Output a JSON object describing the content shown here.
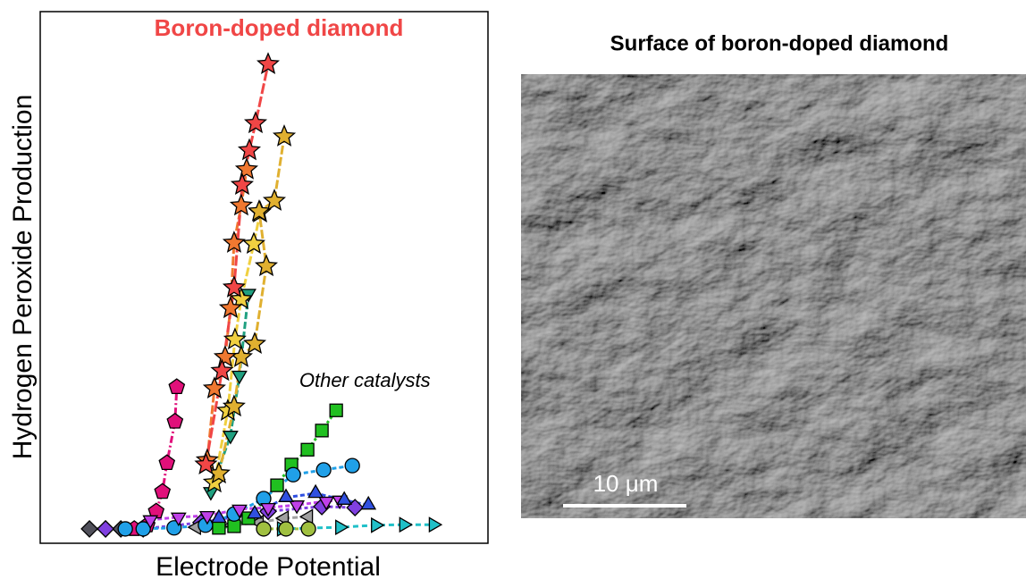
{
  "chart_data": {
    "type": "scatter",
    "xlabel": "Electrode Potential",
    "ylabel": "Hydrogen Peroxide Production",
    "xlim": [
      0,
      100
    ],
    "ylim": [
      0,
      100
    ],
    "annotations": [
      {
        "text": "Boron-doped diamond",
        "color": "#f04646",
        "x": 53.3,
        "y": 96.6,
        "style": "bold"
      },
      {
        "text": "Other catalysts",
        "color": "#000000",
        "x": 72.5,
        "y": 30.4,
        "style": "italic"
      }
    ],
    "series": [
      {
        "color": "#50505a",
        "marker": "diamond",
        "dash": "4 3",
        "x": [
          11,
          14.6,
          18
        ],
        "y": [
          2.7,
          2.7,
          2.7
        ]
      },
      {
        "color": "#8040e0",
        "marker": "diamond",
        "dash": "4 3",
        "x": [
          14.6,
          23,
          35.9,
          50.9,
          62.9,
          70.3
        ],
        "y": [
          2.7,
          2.7,
          3.9,
          6,
          6.9,
          6.7
        ]
      },
      {
        "color": "#a0a0a0",
        "marker": "left",
        "dash": "6 3",
        "x": [
          34.9,
          42.9,
          48.9,
          54.5,
          59.9
        ],
        "y": [
          3,
          3.4,
          3.9,
          4.7,
          5
        ]
      },
      {
        "color": "#20c0c8",
        "marker": "right",
        "dash": "6 4",
        "x": [
          53.9,
          66.9,
          74.9,
          81.2,
          87.8
        ],
        "y": [
          2.7,
          3,
          3.4,
          3.5,
          3.5
        ]
      },
      {
        "color": "#a0c040",
        "marker": "circle",
        "dash": "4 3",
        "x": [
          49.9,
          54.9,
          59.9
        ],
        "y": [
          2.7,
          2.7,
          2.7
        ]
      },
      {
        "color": "#e0107a",
        "marker": "pentagon",
        "dash": "8 3 2 3",
        "x": [
          21,
          23.9,
          25.9,
          27.3,
          28.3,
          30.1,
          30.5
        ],
        "y": [
          2.7,
          3.4,
          6,
          9.7,
          15.1,
          22.9,
          29.4
        ]
      },
      {
        "color": "#20c020",
        "marker": "square",
        "dash": "3 3",
        "x": [
          39.9,
          43.3,
          46.5,
          52.9,
          56.1,
          59.7,
          62.9,
          66.1
        ],
        "y": [
          2.9,
          3.2,
          4.7,
          10.9,
          14.8,
          17.6,
          21.2,
          25
        ]
      },
      {
        "color": "#20a0e8",
        "marker": "circle",
        "dash": "5 3",
        "x": [
          19,
          23,
          29.9,
          36.9,
          43.3,
          49.9,
          56.5,
          63.3,
          69.7
        ],
        "y": [
          2.7,
          2.7,
          2.9,
          3.4,
          5.5,
          8.4,
          12.9,
          13.8,
          14.6
        ]
      },
      {
        "color": "#c040e8",
        "marker": "down",
        "dash": "5 3",
        "x": [
          24.6,
          30.9,
          37.3,
          44.5,
          50.9,
          57.3,
          63.9,
          66.9
        ],
        "y": [
          4.4,
          4.9,
          5.2,
          6.4,
          6.7,
          7.2,
          7.9,
          8.1
        ]
      },
      {
        "color": "#3050e0",
        "marker": "up",
        "dash": "5 3",
        "x": [
          39.9,
          47.9,
          54.9,
          61.5,
          67.9,
          73.3
        ],
        "y": [
          4.7,
          5.5,
          8.6,
          9.4,
          8.1,
          7.2
        ]
      },
      {
        "color": "#20a080",
        "marker": "down",
        "dash": "8 3",
        "x": [
          38.1,
          42.5,
          44.5,
          46.5
        ],
        "y": [
          9.7,
          20.3,
          31.6,
          47
        ]
      },
      {
        "color": "#f0d040",
        "marker": "star",
        "dash": "10 3",
        "x": [
          38.9,
          41.9,
          43.5,
          44.9,
          47.7,
          49.1
        ],
        "y": [
          11.4,
          24.9,
          38.3,
          45.9,
          56.3,
          62.2
        ]
      },
      {
        "color": "#e0b030",
        "marker": "star",
        "dash": "10 3",
        "x": [
          39.9,
          43.3,
          44.9,
          47.9,
          50.5,
          48.9,
          52.3,
          54.5
        ],
        "y": [
          13.1,
          25.7,
          35,
          37.5,
          52.1,
          62.4,
          64.4,
          76.5
        ]
      },
      {
        "color": "#f07830",
        "marker": "star",
        "dash": "10 3",
        "x": [
          37.3,
          38.9,
          41.3,
          42.5,
          43.3,
          44.9,
          46.1
        ],
        "y": [
          15.6,
          29.1,
          35,
          44.2,
          56.5,
          63.5,
          70.3
        ]
      },
      {
        "color": "#f04646",
        "marker": "star",
        "dash": "12 3",
        "x": [
          37,
          40.6,
          43.3,
          45.1,
          46.7,
          48.1,
          50.9
        ],
        "y": [
          14.8,
          32.4,
          48.1,
          67.4,
          73.9,
          79,
          90.1
        ]
      }
    ]
  },
  "image": {
    "title": "Surface of boron-doped diamond",
    "scale_bar_label": "10 μm"
  }
}
